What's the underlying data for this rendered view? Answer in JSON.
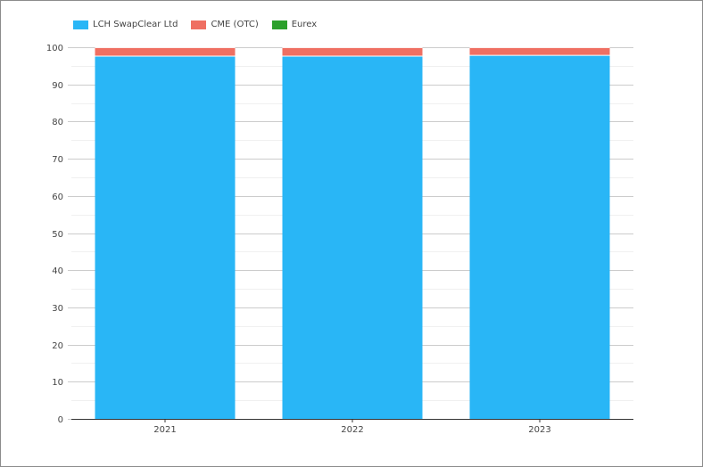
{
  "chart_data": {
    "type": "bar",
    "stacked": true,
    "categories": [
      "2021",
      "2022",
      "2023"
    ],
    "series": [
      {
        "name": "LCH SwapClear Ltd",
        "color": "#29b6f6",
        "values": [
          97.6,
          97.6,
          97.8
        ]
      },
      {
        "name": "CME (OTC)",
        "color": "#ef6f62",
        "values": [
          2.3,
          2.3,
          2.1
        ]
      },
      {
        "name": "Eurex",
        "color": "#2ca02c",
        "values": [
          0.1,
          0.1,
          0.1
        ]
      }
    ],
    "ylim": [
      0,
      100
    ],
    "yticks": [
      "0",
      "10",
      "20",
      "30",
      "40",
      "50",
      "60",
      "70",
      "80",
      "90",
      "100"
    ],
    "legend_position": "top-left",
    "grid": true
  }
}
